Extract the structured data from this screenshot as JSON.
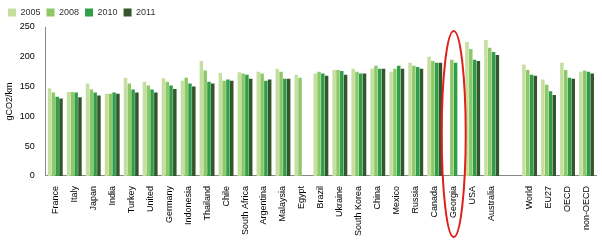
{
  "chart_data": {
    "type": "bar",
    "y_label": "gCO2/km",
    "categories": [
      "France",
      "Italy",
      "Japan",
      "India",
      "Turkey",
      "United",
      "Germany",
      "Indonesia",
      "Thailand",
      "Chile",
      "South Africa",
      "Argentina",
      "Malaysia",
      "Egypt",
      "Brazil",
      "Ukraine",
      "South Korea",
      "China",
      "Mexico",
      "Russia",
      "Canada",
      "Georgia",
      "USA",
      "Australia",
      null,
      "World",
      "EU27",
      "OECD",
      "non-OECD"
    ],
    "series": [
      {
        "name": "2005",
        "color": "#c4dfa0",
        "values": [
          147,
          141,
          155,
          138,
          165,
          158,
          164,
          160,
          193,
          173,
          174,
          175,
          180,
          170,
          172,
          178,
          180,
          180,
          175,
          190,
          200,
          null,
          225,
          228,
          null,
          187,
          162,
          190,
          175
        ]
      },
      {
        "name": "2008",
        "color": "#8cc866",
        "values": [
          140,
          141,
          145,
          138,
          155,
          152,
          158,
          165,
          177,
          160,
          172,
          172,
          175,
          165,
          175,
          178,
          175,
          185,
          180,
          185,
          193,
          195,
          213,
          215,
          null,
          178,
          153,
          178,
          177
        ]
      },
      {
        "name": "2010",
        "color": "#2f9e4a",
        "values": [
          133,
          140,
          140,
          140,
          145,
          145,
          152,
          155,
          158,
          162,
          170,
          160,
          163,
          null,
          172,
          176,
          172,
          180,
          185,
          183,
          190,
          190,
          195,
          208,
          null,
          170,
          142,
          165,
          175
        ]
      },
      {
        "name": "2011",
        "color": "#35552a",
        "values": [
          130,
          132,
          135,
          138,
          140,
          140,
          146,
          150,
          155,
          160,
          163,
          162,
          163,
          null,
          168,
          170,
          172,
          180,
          180,
          180,
          190,
          null,
          193,
          203,
          null,
          168,
          136,
          163,
          172
        ]
      }
    ],
    "ylim": [
      0,
      250
    ],
    "yticks": [
      0,
      50,
      100,
      150,
      200,
      250
    ],
    "grid": false,
    "legend": "top-left"
  }
}
